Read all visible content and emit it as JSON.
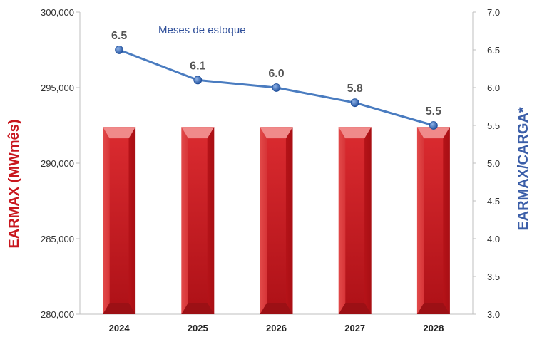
{
  "chart_data": {
    "type": "bar",
    "categories": [
      "2024",
      "2025",
      "2026",
      "2027",
      "2028"
    ],
    "series": [
      {
        "type": "bar",
        "axis": "left",
        "values": [
          292400,
          292400,
          292400,
          292400,
          292400
        ]
      },
      {
        "type": "line",
        "axis": "right",
        "name": "Meses de estoque",
        "values": [
          6.5,
          6.1,
          6.0,
          5.8,
          5.5
        ],
        "data_labels": [
          "6.5",
          "6.1",
          "6.0",
          "5.8",
          "5.5"
        ]
      }
    ],
    "ylabel": "EARMAX (MWmês)",
    "ylabel_right": "EARMAX/CARGA*",
    "ylim": [
      280000,
      300000
    ],
    "ylim_right": [
      3.0,
      7.0
    ],
    "yticks_left": [
      "280,000",
      "285,000",
      "290,000",
      "295,000",
      "300,000"
    ],
    "yticks_right": [
      "3.0",
      "3.5",
      "4.0",
      "4.5",
      "5.0",
      "5.5",
      "6.0",
      "6.5",
      "7.0"
    ],
    "grid": false,
    "colors": {
      "bar": "#c8171e",
      "bar_light": "#f08a8a",
      "line": "#4a7cc0",
      "marker": "#2a5aa8",
      "left_label": "#c8171e",
      "right_label": "#3b5ea8"
    }
  }
}
